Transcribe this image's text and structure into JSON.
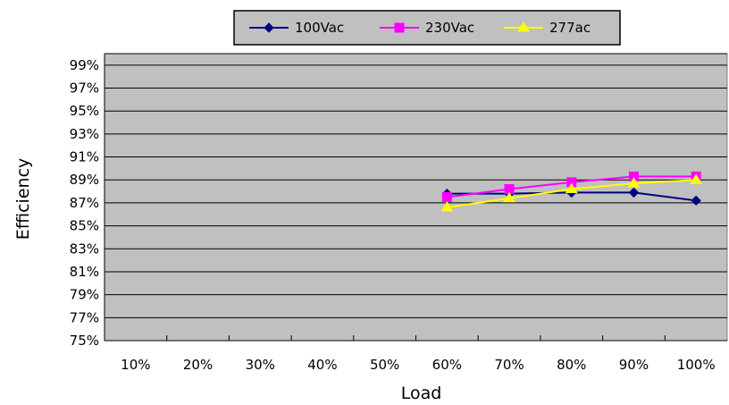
{
  "chart_data": {
    "type": "line",
    "title": "",
    "xlabel": "Load",
    "ylabel": "Efficiency",
    "categories": [
      "10%",
      "20%",
      "30%",
      "40%",
      "50%",
      "60%",
      "70%",
      "80%",
      "90%",
      "100%"
    ],
    "yticks": [
      "75%",
      "77%",
      "79%",
      "81%",
      "83%",
      "85%",
      "87%",
      "89%",
      "91%",
      "93%",
      "95%",
      "97%",
      "99%"
    ],
    "ylim": [
      75,
      100
    ],
    "grid": "horizontal",
    "legend_position": "top-center",
    "background": "#c0c0c0",
    "series": [
      {
        "name": "100Vac",
        "color": "#000080",
        "marker": "diamond",
        "values": [
          null,
          null,
          null,
          null,
          null,
          87.8,
          87.8,
          87.9,
          87.9,
          87.2
        ]
      },
      {
        "name": "230Vac",
        "color": "#ff00ff",
        "marker": "square",
        "values": [
          null,
          null,
          null,
          null,
          null,
          87.5,
          88.2,
          88.8,
          89.3,
          89.3
        ]
      },
      {
        "name": "277ac",
        "color": "#ffff00",
        "marker": "triangle",
        "values": [
          null,
          null,
          null,
          null,
          null,
          86.6,
          87.4,
          88.2,
          88.7,
          89.0
        ]
      }
    ]
  }
}
